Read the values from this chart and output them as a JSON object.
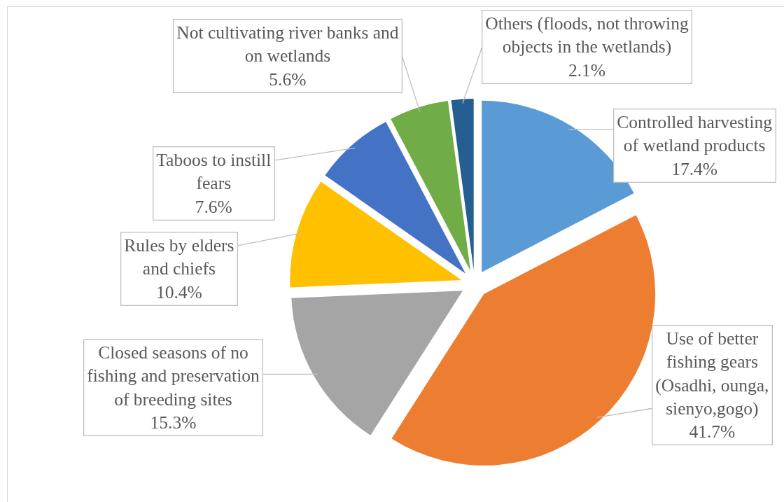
{
  "chart_data": {
    "type": "pie",
    "categories": [
      "Controlled harvesting of wetland products",
      "Use of better fishing gears (Osadhi, ounga, sienyo,gogo)",
      "Closed seasons of no fishing and preservation of breeding sites",
      "Rules by elders and chiefs",
      "Taboos to instill fears",
      "Not cultivating river banks and on wetlands",
      "Others (floods, not throwing objects in the wetlands)"
    ],
    "values": [
      17.4,
      41.7,
      15.3,
      10.4,
      7.6,
      5.6,
      2.1
    ],
    "colors": [
      "#5b9bd5",
      "#ed7d31",
      "#a5a5a5",
      "#ffc000",
      "#4472c4",
      "#70ad47",
      "#255e91"
    ],
    "value_labels": [
      "17.4%",
      "41.7%",
      "15.3%",
      "10.4%",
      "7.6%",
      "5.6%",
      "2.1%"
    ]
  }
}
